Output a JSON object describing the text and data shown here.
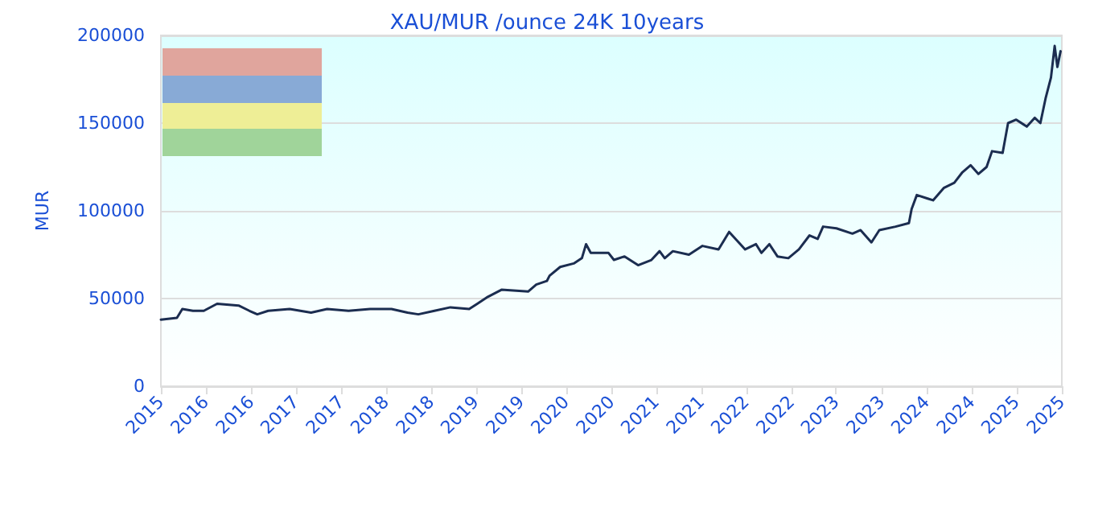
{
  "chart_data": {
    "type": "line",
    "title": "XAU/MUR /ounce 24K 10years",
    "ylabel": "MUR",
    "x": [
      "2015-11-01",
      "2016-01-05",
      "2016-01-27",
      "2016-03-10",
      "2016-04-23",
      "2016-06-16",
      "2016-09-11",
      "2016-10-25",
      "2016-11-26",
      "2017-01-09",
      "2017-04-06",
      "2017-07-02",
      "2017-09-05",
      "2017-12-01",
      "2018-02-26",
      "2018-05-24",
      "2018-07-28",
      "2018-09-10",
      "2018-11-14",
      "2019-01-18",
      "2019-04-04",
      "2019-05-07",
      "2019-06-19",
      "2019-08-13",
      "2019-11-29",
      "2020-01-01",
      "2020-02-13",
      "2020-02-24",
      "2020-04-07",
      "2020-06-01",
      "2020-07-04",
      "2020-07-21",
      "2020-08-09",
      "2020-10-20",
      "2020-11-11",
      "2020-12-24",
      "2021-02-17",
      "2021-04-12",
      "2021-05-15",
      "2021-06-05",
      "2021-07-08",
      "2021-09-11",
      "2021-11-05",
      "2022-01-09",
      "2022-02-21",
      "2022-04-27",
      "2022-06-10",
      "2022-07-02",
      "2022-08-03",
      "2022-09-05",
      "2022-10-19",
      "2022-12-01",
      "2023-01-13",
      "2023-02-15",
      "2023-03-09",
      "2023-05-02",
      "2023-07-06",
      "2023-08-08",
      "2023-09-21",
      "2023-10-23",
      "2023-12-28",
      "2024-02-20",
      "2024-03-02",
      "2024-03-23",
      "2024-05-06",
      "2024-05-28",
      "2024-07-10",
      "2024-08-22",
      "2024-09-24",
      "2024-10-27",
      "2024-11-28",
      "2024-12-31",
      "2025-01-22",
      "2025-03-06",
      "2025-03-28",
      "2025-04-30",
      "2025-06-12",
      "2025-07-14",
      "2025-08-06",
      "2025-08-27",
      "2025-09-18",
      "2025-10-03",
      "2025-10-14",
      "2025-10-27"
    ],
    "series": [
      {
        "color": "#1b2d50",
        "values": [
          38000,
          39000,
          44000,
          43000,
          43000,
          47000,
          46000,
          43000,
          41000,
          43000,
          44000,
          42000,
          44000,
          43000,
          44000,
          44000,
          42000,
          41000,
          43000,
          45000,
          44000,
          47000,
          51000,
          55000,
          54000,
          58000,
          60000,
          63000,
          68000,
          70000,
          73000,
          81000,
          76000,
          76000,
          72000,
          74000,
          69000,
          72000,
          77000,
          73000,
          77000,
          75000,
          80000,
          78000,
          88000,
          78000,
          81000,
          76000,
          81000,
          74000,
          73000,
          78000,
          86000,
          84000,
          91000,
          90000,
          87000,
          89000,
          82000,
          89000,
          91000,
          93000,
          101000,
          109000,
          107000,
          106000,
          113000,
          116000,
          122000,
          126000,
          121000,
          125000,
          134000,
          133000,
          150000,
          152000,
          148000,
          153000,
          150000,
          164000,
          176000,
          194000,
          182000,
          191000
        ]
      }
    ],
    "xlim": [
      "2015-11-01",
      "2025-11-01"
    ],
    "xticks": [
      {
        "value": "2015-11-01",
        "label": "2015"
      },
      {
        "value": "2016-05-01",
        "label": "2016"
      },
      {
        "value": "2016-11-01",
        "label": "2016"
      },
      {
        "value": "2017-05-01",
        "label": "2017"
      },
      {
        "value": "2017-11-01",
        "label": "2017"
      },
      {
        "value": "2018-05-01",
        "label": "2018"
      },
      {
        "value": "2018-11-01",
        "label": "2018"
      },
      {
        "value": "2019-05-01",
        "label": "2019"
      },
      {
        "value": "2019-11-01",
        "label": "2019"
      },
      {
        "value": "2020-05-01",
        "label": "2020"
      },
      {
        "value": "2020-11-01",
        "label": "2020"
      },
      {
        "value": "2021-05-01",
        "label": "2021"
      },
      {
        "value": "2021-11-01",
        "label": "2021"
      },
      {
        "value": "2022-05-01",
        "label": "2022"
      },
      {
        "value": "2022-11-01",
        "label": "2022"
      },
      {
        "value": "2023-05-01",
        "label": "2023"
      },
      {
        "value": "2023-11-01",
        "label": "2023"
      },
      {
        "value": "2024-05-01",
        "label": "2024"
      },
      {
        "value": "2024-11-01",
        "label": "2024"
      },
      {
        "value": "2025-05-01",
        "label": "2025"
      },
      {
        "value": "2025-11-01",
        "label": "2025"
      }
    ],
    "ylim": [
      0,
      200000
    ],
    "yticks": [
      0,
      50000,
      100000,
      150000,
      200000
    ],
    "grid": "y",
    "marker": "none",
    "line_style": "solid"
  }
}
